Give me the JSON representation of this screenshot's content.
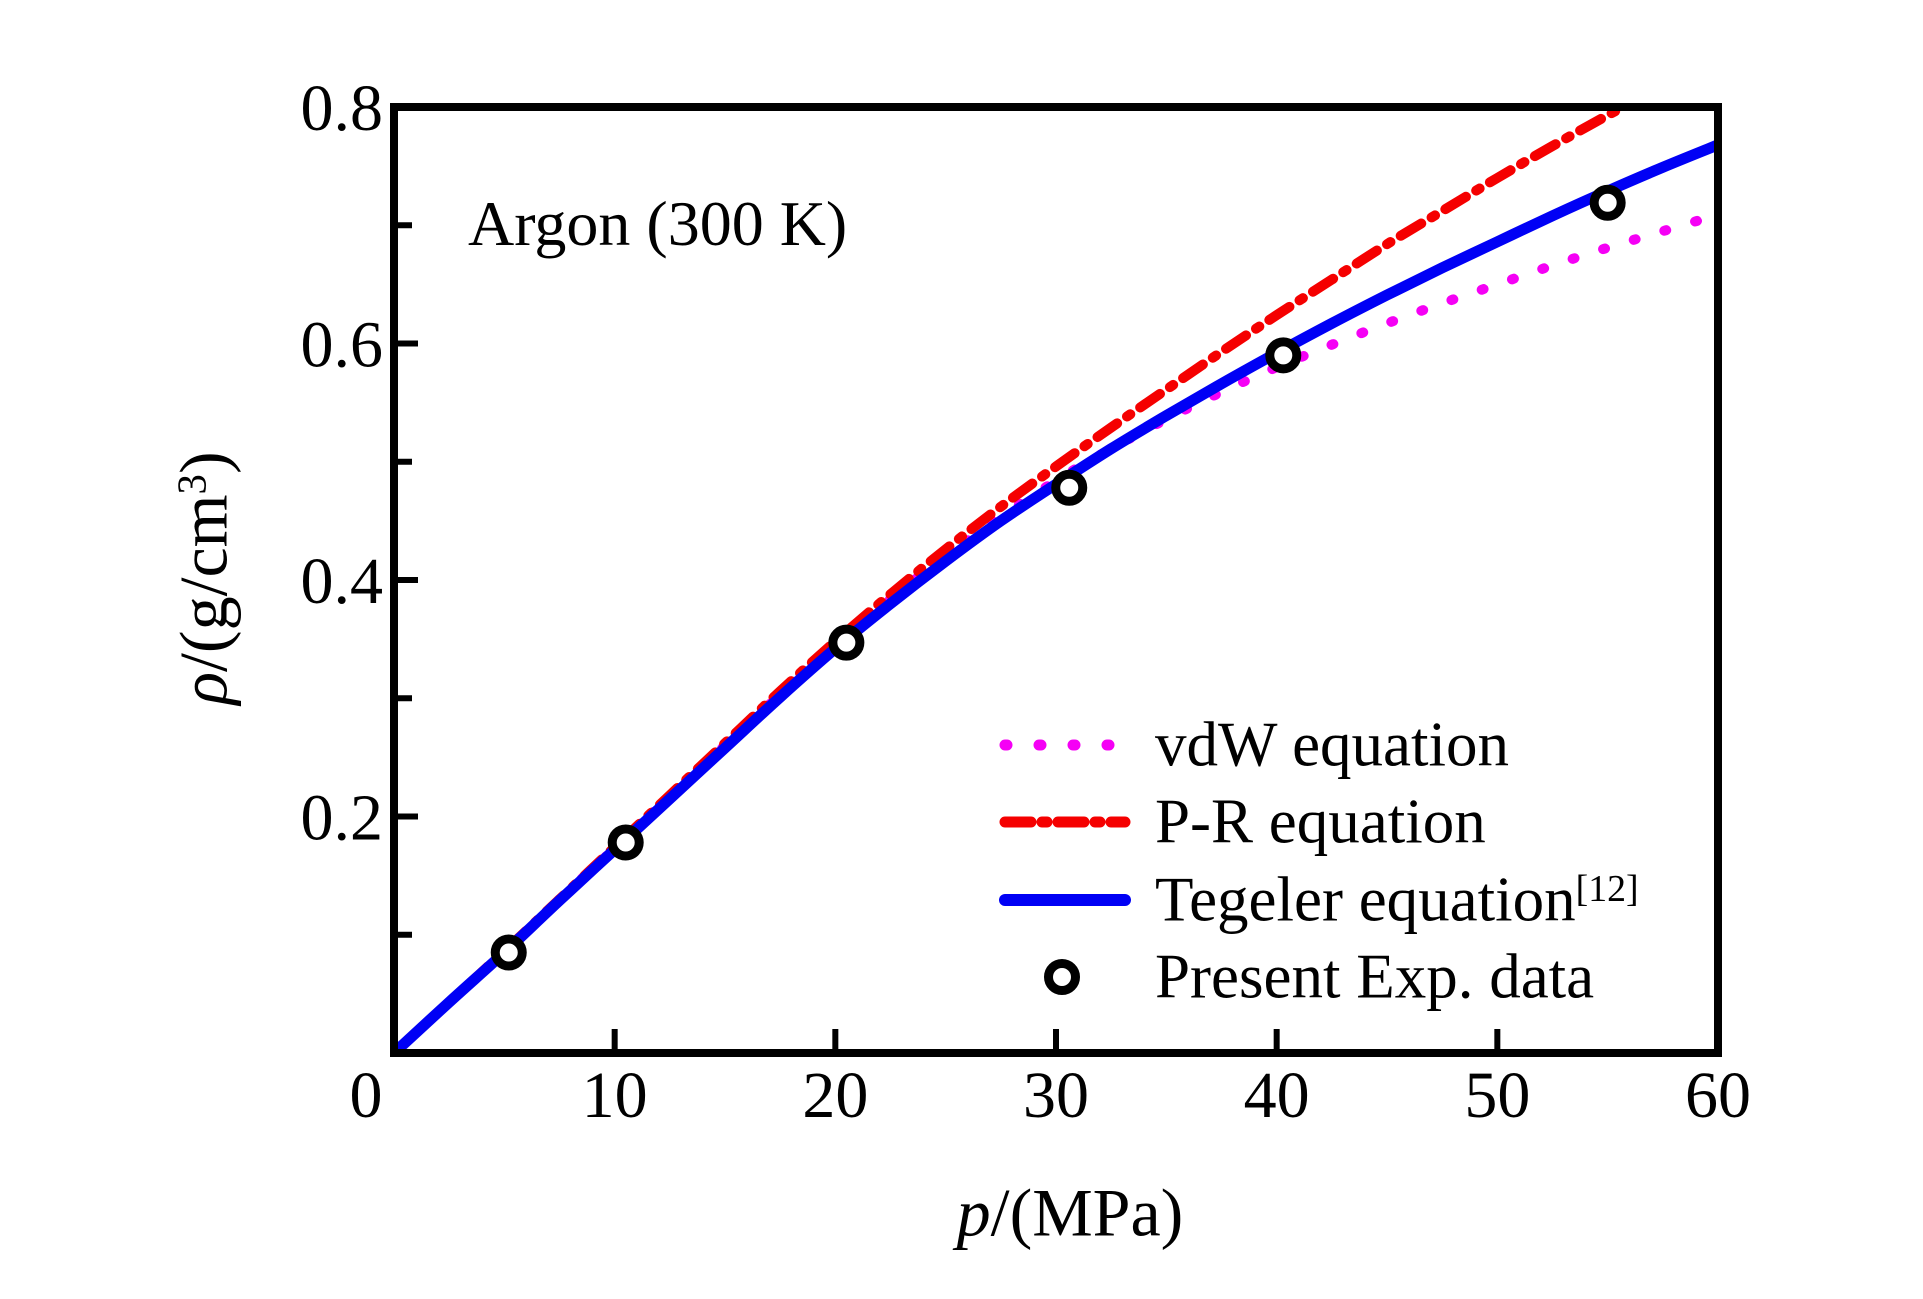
{
  "figure": {
    "title": "Argon (300 K)",
    "xlabel": {
      "var": "p",
      "rest": "/(MPa)"
    },
    "ylabel": {
      "var": "ρ",
      "rest": "/(g/cm",
      "sup": "3",
      "close": ")"
    }
  },
  "axes": {
    "x": {
      "min": 0,
      "max": 60,
      "tick_labels": [
        "0",
        "10",
        "20",
        "30",
        "40",
        "50",
        "60"
      ]
    },
    "y": {
      "min": 0,
      "max": 0.8,
      "tick_labels": [
        "0.2",
        "0.4",
        "0.6",
        "0.8"
      ]
    }
  },
  "legend": {
    "entries": [
      {
        "label": "vdW equation",
        "style": "dotted",
        "color": "#F500F5"
      },
      {
        "label": "P-R equation",
        "style": "dashdot",
        "color": "#F50000"
      },
      {
        "label": "Tegeler equation",
        "sup": "[12]",
        "style": "solid",
        "color": "#0000F5"
      },
      {
        "label": "Present Exp. data",
        "style": "marker",
        "color": "#000000"
      }
    ]
  },
  "chart_data": {
    "type": "line",
    "title": "Argon (300 K)",
    "xlabel": "p/(MPa)",
    "ylabel": "ρ/(g/cm³)",
    "xlim": [
      0,
      60
    ],
    "ylim": [
      0,
      0.8
    ],
    "x_ticks": [
      0,
      10,
      20,
      30,
      40,
      50,
      60
    ],
    "x_tick_lines": [
      10,
      20,
      30,
      40,
      50
    ],
    "y_ticks_labeled": [
      0.2,
      0.4,
      0.6,
      0.8
    ],
    "y_major_tick_lines": [
      0.2,
      0.4,
      0.6
    ],
    "y_minor_tick_lines": [
      0.1,
      0.3,
      0.5,
      0.7
    ],
    "grid": false,
    "legend_position": "inside lower-right",
    "annotations": [
      {
        "text": "Argon (300 K)",
        "x": 3.3,
        "y": 0.7
      }
    ],
    "x": [
      0,
      2.5,
      5,
      7.5,
      10,
      12.5,
      15,
      17.5,
      20,
      22.5,
      25,
      27.5,
      30,
      32.5,
      35,
      37.5,
      40,
      42.5,
      45,
      47.5,
      50,
      52.5,
      55,
      57.5,
      60
    ],
    "series": [
      {
        "name": "vdW equation",
        "type": "line",
        "style": "dotted",
        "color": "#F500F5",
        "values": [
          0,
          0.043,
          0.085,
          0.13,
          0.173,
          0.217,
          0.26,
          0.303,
          0.345,
          0.384,
          0.42,
          0.453,
          0.484,
          0.511,
          0.536,
          0.559,
          0.58,
          0.599,
          0.617,
          0.634,
          0.65,
          0.666,
          0.681,
          0.695,
          0.709
        ]
      },
      {
        "name": "P-R equation",
        "type": "line",
        "style": "dashdot",
        "color": "#F50000",
        "values": [
          0,
          0.043,
          0.086,
          0.13,
          0.174,
          0.218,
          0.262,
          0.306,
          0.348,
          0.388,
          0.426,
          0.462,
          0.496,
          0.529,
          0.561,
          0.593,
          0.624,
          0.654,
          0.684,
          0.712,
          0.74,
          0.767,
          0.793,
          0.818,
          0.842
        ]
      },
      {
        "name": "Tegeler equation[12]",
        "type": "line",
        "style": "solid",
        "color": "#0000F5",
        "values": [
          0,
          0.043,
          0.085,
          0.129,
          0.172,
          0.215,
          0.258,
          0.301,
          0.342,
          0.38,
          0.416,
          0.45,
          0.481,
          0.511,
          0.539,
          0.566,
          0.592,
          0.617,
          0.641,
          0.664,
          0.686,
          0.708,
          0.729,
          0.749,
          0.768
        ]
      },
      {
        "name": "Present Exp. data",
        "type": "scatter",
        "marker": "open-circle",
        "color": "#000000",
        "x": [
          5.2,
          10.5,
          20.5,
          30.6,
          40.3,
          55.0
        ],
        "y": [
          0.085,
          0.178,
          0.347,
          0.478,
          0.59,
          0.719
        ]
      }
    ]
  }
}
